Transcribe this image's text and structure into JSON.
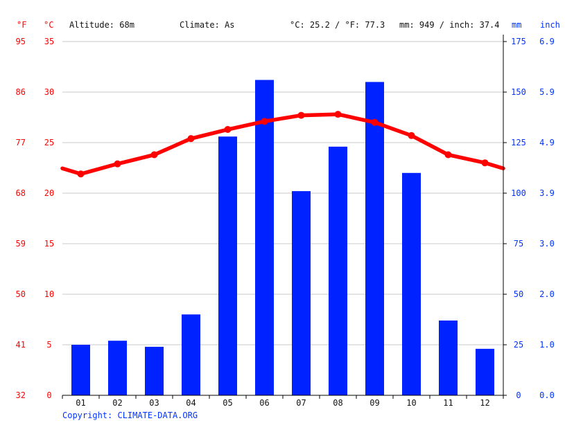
{
  "header": {
    "unit_f": "°F",
    "unit_c": "°C",
    "altitude": "Altitude: 68m",
    "climate": "Climate: As",
    "temp_avg": "°C: 25.2 / °F: 77.3",
    "precip_total": "mm: 949 / inch: 37.4",
    "unit_mm": "mm",
    "unit_inch": "inch"
  },
  "footer": {
    "copyright": "Copyright: CLIMATE-DATA.ORG"
  },
  "colors": {
    "temperature": "#ff0000",
    "precipitation": "#0022ff",
    "grid": "#c8c8c8",
    "axis": "#000000"
  },
  "chart_data": {
    "type": "bar",
    "categories": [
      "01",
      "02",
      "03",
      "04",
      "05",
      "06",
      "07",
      "08",
      "09",
      "10",
      "11",
      "12"
    ],
    "series": [
      {
        "name": "Precipitation",
        "unit": "mm",
        "axis": "right",
        "chart_type": "bar",
        "values": [
          25,
          27,
          24,
          40,
          128,
          156,
          101,
          123,
          155,
          110,
          37,
          23
        ]
      },
      {
        "name": "Temperature",
        "unit": "°C",
        "axis": "left",
        "chart_type": "line",
        "values": [
          21.9,
          22.9,
          23.8,
          25.4,
          26.3,
          27.1,
          27.7,
          27.8,
          27.0,
          25.7,
          23.8,
          23.0
        ]
      }
    ],
    "y_left_c": {
      "ylim": [
        0,
        35
      ],
      "ticks": [
        "0",
        "5",
        "10",
        "15",
        "20",
        "25",
        "30",
        "35"
      ]
    },
    "y_left_f": {
      "ticks": [
        "32",
        "41",
        "50",
        "59",
        "68",
        "77",
        "86",
        "95"
      ]
    },
    "y_right_mm": {
      "ylim": [
        0,
        175
      ],
      "ticks": [
        "0",
        "25",
        "50",
        "75",
        "100",
        "125",
        "150",
        "175"
      ]
    },
    "y_right_inch": {
      "ticks": [
        "0.0",
        "1.0",
        "2.0",
        "3.0",
        "3.9",
        "4.9",
        "5.9",
        "6.9"
      ]
    },
    "grid": true
  }
}
